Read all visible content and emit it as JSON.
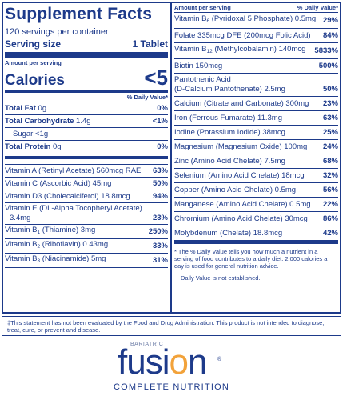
{
  "label": {
    "title": "Supplement Facts",
    "servings_per_container": "120 servings per container",
    "serving_size_label": "Serving size",
    "serving_size_value": "1 Tablet",
    "amount_per_serving": "Amount per serving",
    "calories_label": "Calories",
    "calories_value": "<5",
    "daily_value_header": "% Daily Value*",
    "macros": [
      {
        "name": "Total Fat",
        "amount": "0g",
        "dv": "0%"
      },
      {
        "name": "Total Carbohydrate",
        "amount": "1.4g",
        "dv": "<1%"
      },
      {
        "name": "Sugar",
        "amount": "<1g",
        "dv": ""
      },
      {
        "name": "Total Protein",
        "amount": "0g",
        "dv": "0%"
      }
    ],
    "vitamins_left": [
      {
        "name": "Vitamin A (Retinyl Acetate) 560mcg RAE",
        "dv": "63%"
      },
      {
        "name": "Vitamin C (Ascorbic Acid) 45mg",
        "dv": "50%"
      },
      {
        "name": "Vitamin D3 (Cholecalciferol) 18.8mcg",
        "dv": "94%"
      },
      {
        "name_line1": "Vitamin E (DL-Alpha Tocopheryl Acetate)",
        "name_line2": "3.4mg",
        "dv": "23%"
      },
      {
        "pre": "Vitamin B",
        "sub": "1",
        "post": " (Thiamine) 3mg",
        "dv": "250%"
      },
      {
        "pre": "Vitamin B",
        "sub": "2",
        "post": " (Riboflavin) 0.43mg",
        "dv": "33%"
      },
      {
        "pre": "Vitamin B",
        "sub": "3",
        "post": " (Niacinamide) 5mg",
        "dv": "31%"
      }
    ],
    "right_header_left": "Amount per serving",
    "right_header_right": "% Daily Value*",
    "nutrients_right": [
      {
        "pre": "Vitamin B",
        "sub": "6",
        "post": " (Pyridoxal 5 Phosphate) 0.5mg",
        "dv": "29%"
      },
      {
        "name": "Folate 335mcg DFE (200mcg Folic Acid)",
        "dv": "84%"
      },
      {
        "pre": "Vitamin B",
        "sub": "12",
        "post": " (Methylcobalamin) 140mcg",
        "dv": "5833%"
      },
      {
        "name": "Biotin 150mcg",
        "dv": "500%"
      },
      {
        "name_line1": "Pantothenic Acid",
        "name_line2": "(D-Calcium Pantothenate) 2.5mg",
        "dv": "50%"
      },
      {
        "name": "Calcium (Citrate and Carbonate) 300mg",
        "dv": "23%"
      },
      {
        "name": "Iron (Ferrous Fumarate) 11.3mg",
        "dv": "63%"
      },
      {
        "name": "Iodine (Potassium Iodide) 38mcg",
        "dv": "25%"
      },
      {
        "name": "Magnesium (Magnesium Oxide) 100mg",
        "dv": "24%"
      },
      {
        "name": "Zinc (Amino Acid Chelate) 7.5mg",
        "dv": "68%"
      },
      {
        "name": "Selenium (Amino Acid Chelate) 18mcg",
        "dv": "32%"
      },
      {
        "name": "Copper (Amino Acid Chelate) 0.5mg",
        "dv": "56%"
      },
      {
        "name": "Manganese (Amino Acid Chelate) 0.5mg",
        "dv": "22%"
      },
      {
        "name": "Chromium (Amino Acid Chelate) 30mcg",
        "dv": "86%"
      },
      {
        "name": "Molybdenum (Chelate) 18.8mcg",
        "dv": "42%"
      }
    ],
    "footnote": "* The % Daily Value tells you how much a nutrient in a serving of food contributes to a daily diet. 2,000 calories a day is used for general nutrition advice.",
    "footnote2": "Daily Value is not established.",
    "disclaimer": "‡This statement has not been evaluated by the Food and Drug Administration. This product is not intended to diagnose, treat, cure, or prevent and disease."
  },
  "brand": {
    "small": "BARIATRIC",
    "name_pre": "fusi",
    "name_o": "o",
    "name_post": "n",
    "tm": "®",
    "tagline": "COMPLETE NUTRITION",
    "colors": {
      "primary": "#1d3a8a",
      "accent": "#f2a23a"
    }
  }
}
